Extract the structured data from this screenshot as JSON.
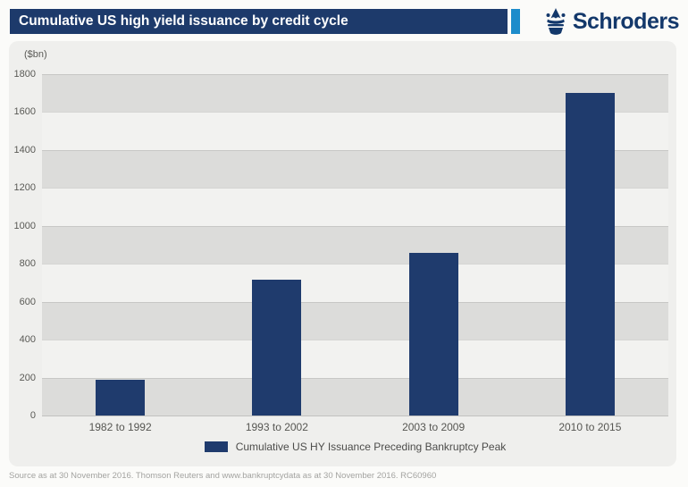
{
  "header": {
    "title": "Cumulative US high yield issuance by credit cycle",
    "brand": "Schroders"
  },
  "chart_data": {
    "type": "bar",
    "title": "Cumulative US high yield issuance by credit cycle",
    "unit_label": "($bn)",
    "categories": [
      "1982 to 1992",
      "1993 to 2002",
      "2003 to 2009",
      "2010 to 2015"
    ],
    "values": [
      190,
      715,
      860,
      1700
    ],
    "ylim": [
      0,
      1800
    ],
    "yticks": [
      0,
      200,
      400,
      600,
      800,
      1000,
      1200,
      1400,
      1600,
      1800
    ],
    "xlabel": "",
    "ylabel": "($bn)",
    "grid": "horizontal-bands-alternating",
    "legend_position": "bottom",
    "legend_label": "Cumulative US HY Issuance Preceding Bankruptcy Peak",
    "bar_color": "#1f3b6d"
  },
  "footer": {
    "source": "Source as at 30 November 2016. Thomson Reuters and www.bankruptcydata as at 30 November 2016. RC60960"
  },
  "colors": {
    "header_bar": "#1d3a6b",
    "accent_stripe": "#1d8ccb",
    "brand_text": "#13386b",
    "panel_background": "#efefed",
    "band_dark": "#dcdcda",
    "band_light": "#f2f2f0",
    "bar": "#1f3b6d"
  }
}
